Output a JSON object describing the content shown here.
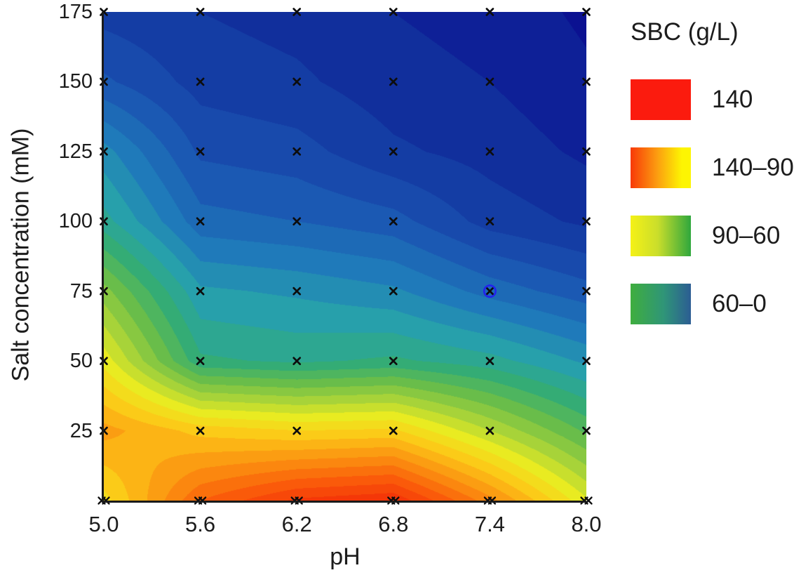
{
  "figure": {
    "background": "#ffffff",
    "text_color": "#1c1c1c",
    "axis_line_color": "#1a1a1a"
  },
  "axes": {
    "x": {
      "title": "pH",
      "ticks": [
        "5.0",
        "5.6",
        "6.2",
        "6.8",
        "7.4",
        "8.0"
      ]
    },
    "y": {
      "title": "Salt concentration (mM)",
      "ticks": [
        "25",
        "50",
        "75",
        "100",
        "125",
        "150",
        "175"
      ]
    }
  },
  "legend": {
    "title": "SBC (g/L)",
    "items": [
      {
        "label": "140",
        "swatch": [
          "#fb1b0e"
        ]
      },
      {
        "label": "140–90",
        "swatch": [
          "#f83908 0%",
          "#fc9f10 45%",
          "#fdf502 85%"
        ]
      },
      {
        "label": "90–60",
        "swatch": [
          "#f5f116 0%",
          "#cade2b 45%",
          "#2fa73d 100%"
        ]
      },
      {
        "label": "60–0",
        "swatch": [
          "#3fae3e 0%",
          "#2f9578 55%",
          "#2c5d93 100%"
        ]
      }
    ]
  },
  "chart_data": {
    "type": "heatmap",
    "render_style": "filled_contour",
    "title": "",
    "xlabel": "pH",
    "ylabel": "Salt concentration (mM)",
    "z_label": "SBC (g/L)",
    "x_values": [
      5.0,
      5.6,
      6.2,
      6.8,
      7.4,
      8.0
    ],
    "y_values": [
      0,
      25,
      50,
      75,
      100,
      125,
      150,
      175
    ],
    "xlim": [
      5.0,
      8.0
    ],
    "ylim": [
      0,
      175
    ],
    "z_range": [
      0,
      140
    ],
    "contour_step": 5,
    "grid": false,
    "legend_position": "right",
    "values": [
      [
        93,
        120,
        131,
        134,
        112,
        86
      ],
      [
        107,
        98,
        95,
        96,
        80,
        64
      ],
      [
        88,
        56,
        54,
        56,
        52,
        44
      ],
      [
        72,
        46,
        44,
        41,
        33,
        27
      ],
      [
        52,
        32,
        30,
        27,
        18,
        14
      ],
      [
        42,
        24,
        22,
        16,
        13,
        9
      ],
      [
        26,
        18,
        16,
        12,
        10,
        6
      ],
      [
        18,
        15,
        13,
        10,
        8,
        4
      ]
    ],
    "markers": {
      "symbol": "x",
      "color": "#0d0d0d",
      "at_every_grid_point": true,
      "doubled_on_bottom_row": true
    },
    "highlighted_point": {
      "x": 7.4,
      "y": 75,
      "ring_color": "#2222ee"
    },
    "colormap_stops": [
      [
        0,
        "#0a0a8e"
      ],
      [
        14,
        "#12339e"
      ],
      [
        26,
        "#1a54b2"
      ],
      [
        38,
        "#1f7cba"
      ],
      [
        48,
        "#27a2aa"
      ],
      [
        58,
        "#35ad72"
      ],
      [
        68,
        "#6cbe48"
      ],
      [
        78,
        "#aad438"
      ],
      [
        88,
        "#ecec20"
      ],
      [
        98,
        "#fcc918"
      ],
      [
        110,
        "#fb9210"
      ],
      [
        122,
        "#fa5c0a"
      ],
      [
        140,
        "#ef1c06"
      ]
    ]
  }
}
